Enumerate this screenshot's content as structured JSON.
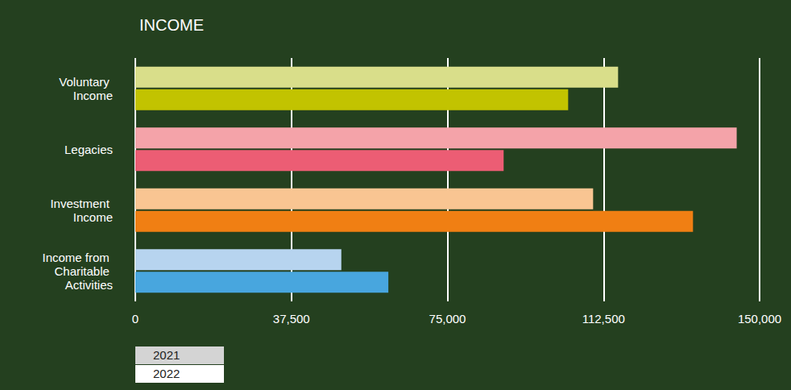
{
  "chart_data": {
    "type": "bar",
    "orientation": "horizontal",
    "title": "INCOME",
    "categories": [
      "Voluntary Income",
      "Legacies",
      "Investment Income",
      "Income from Charitable Activities"
    ],
    "series": [
      {
        "name": "2021",
        "colors": [
          "#d9de8a",
          "#f4a3a9",
          "#f9c592",
          "#b7d4ef"
        ],
        "values": [
          116000,
          144500,
          110000,
          49500
        ]
      },
      {
        "name": "2022",
        "colors": [
          "#c2c300",
          "#ec5d74",
          "#f07f13",
          "#48a6de"
        ],
        "values": [
          104000,
          88500,
          134000,
          60800
        ]
      }
    ],
    "xlim": [
      0,
      150000
    ],
    "xticks": [
      0,
      {
        "value": 37500,
        "label": "37,500"
      },
      {
        "value": 75000,
        "label": "75,000"
      },
      {
        "value": 112500,
        "label": "112,500"
      },
      {
        "value": 150000,
        "label": "150,000"
      }
    ],
    "grid": true,
    "legend": "bottom-left"
  }
}
